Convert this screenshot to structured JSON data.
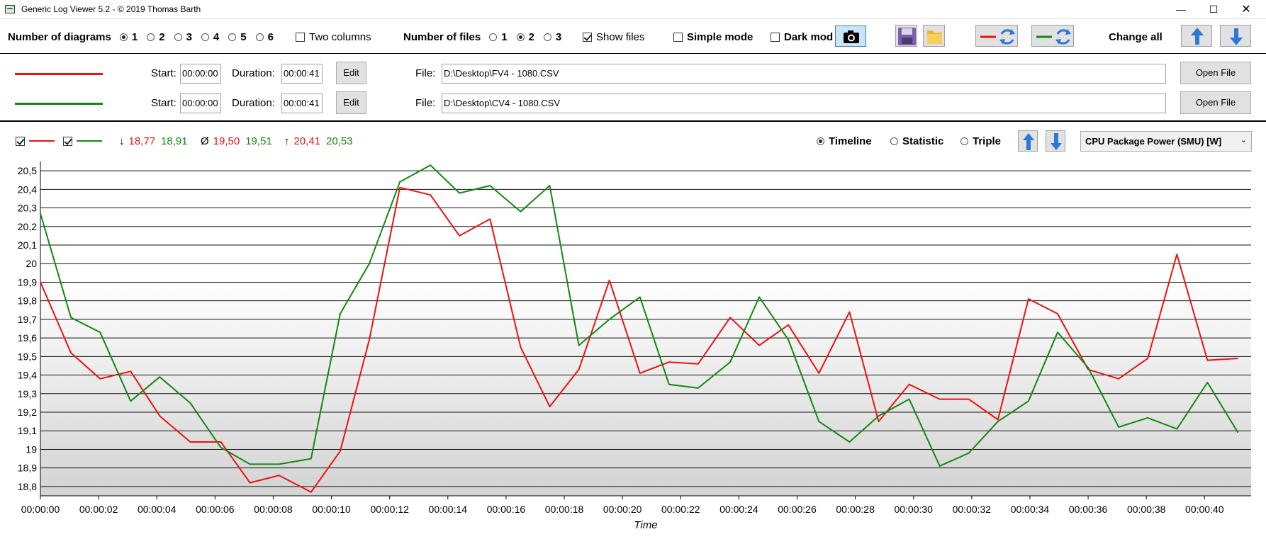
{
  "window": {
    "title": "Generic Log Viewer 5.2 - © 2019 Thomas Barth",
    "minimize": "—",
    "maximize": "☐",
    "close": "✕"
  },
  "toolbar": {
    "diagrams_label": "Number of diagrams",
    "diagram_options": [
      "1",
      "2",
      "3",
      "4",
      "5",
      "6"
    ],
    "diagram_selected": "1",
    "two_columns_label": "Two columns",
    "two_columns_checked": false,
    "files_label": "Number of files",
    "file_options": [
      "1",
      "2",
      "3"
    ],
    "file_selected": "2",
    "show_files_label": "Show files",
    "show_files_checked": true,
    "simple_mode_label": "Simple mode",
    "simple_mode_checked": false,
    "dark_mode_label": "Dark mod",
    "dark_mode_checked": false,
    "change_all_label": "Change all",
    "icons": {
      "camera": "camera-icon",
      "save": "floppy-disk-icon",
      "folder": "folder-icon",
      "swap_red": "red-line-swap-icon",
      "swap_green": "green-line-swap-icon",
      "up": "arrow-up-icon",
      "down": "arrow-down-icon"
    }
  },
  "files": [
    {
      "color": "#ee1111",
      "start_label": "Start:",
      "start": "00:00:00",
      "duration_label": "Duration:",
      "duration": "00:00:41",
      "edit_label": "Edit",
      "file_label": "File:",
      "path": "D:\\Desktop\\FV4 - 1080.CSV",
      "open_label": "Open File"
    },
    {
      "color": "#118811",
      "start_label": "Start:",
      "start": "00:00:00",
      "duration_label": "Duration:",
      "duration": "00:00:41",
      "edit_label": "Edit",
      "file_label": "File:",
      "path": "D:\\Desktop\\CV4 - 1080.CSV",
      "open_label": "Open File"
    }
  ],
  "stats": {
    "min_symbol": "↓",
    "min_red": "18,77",
    "min_green": "18,91",
    "avg_symbol": "Ø",
    "avg_red": "19,50",
    "avg_green": "19,51",
    "max_symbol": "↑",
    "max_red": "20,41",
    "max_green": "20,53",
    "series1_visible": true,
    "series2_visible": true
  },
  "view": {
    "options": [
      "Timeline",
      "Statistic",
      "Triple"
    ],
    "selected": "Timeline",
    "sensor": "CPU Package Power (SMU) [W]",
    "caret": "⌄"
  },
  "chart_data": {
    "type": "line",
    "xlabel": "Time",
    "ylabel": "",
    "ylim": [
      18.75,
      20.55
    ],
    "y_ticks": [
      "18,8",
      "18,9",
      "19",
      "19,1",
      "19,2",
      "19,3",
      "19,4",
      "19,5",
      "19,6",
      "19,7",
      "19,8",
      "19,9",
      "20",
      "20,1",
      "20,2",
      "20,3",
      "20,4",
      "20,5"
    ],
    "y_tick_values": [
      18.8,
      18.9,
      19.0,
      19.1,
      19.2,
      19.3,
      19.4,
      19.5,
      19.6,
      19.7,
      19.8,
      19.9,
      20.0,
      20.1,
      20.2,
      20.3,
      20.4,
      20.5
    ],
    "x_ticks": [
      "00:00:00",
      "00:00:02",
      "00:00:04",
      "00:00:06",
      "00:00:08",
      "00:00:10",
      "00:00:12",
      "00:00:14",
      "00:00:16",
      "00:00:18",
      "00:00:20",
      "00:00:22",
      "00:00:24",
      "00:00:26",
      "00:00:28",
      "00:00:30",
      "00:00:32",
      "00:00:34",
      "00:00:36",
      "00:00:38",
      "00:00:40"
    ],
    "x_tick_values": [
      0,
      2,
      4,
      6,
      8,
      10,
      12,
      14,
      16,
      18,
      20,
      22,
      24,
      26,
      28,
      30,
      32,
      34,
      36,
      38,
      40
    ],
    "xlim": [
      0,
      41.6
    ],
    "grid": true,
    "series": [
      {
        "color": "#ee1111",
        "x": [
          0,
          1.05,
          2.05,
          3.1,
          4.1,
          5.15,
          6.2,
          7.2,
          8.2,
          9.3,
          10.3,
          11.3,
          12.35,
          13.4,
          14.4,
          15.45,
          16.5,
          17.5,
          18.5,
          19.55,
          20.6,
          21.6,
          22.6,
          23.7,
          24.7,
          25.7,
          26.75,
          27.8,
          28.8,
          29.85,
          30.9,
          31.9,
          32.9,
          33.95,
          34.95,
          36.0,
          37.05,
          38.05,
          39.05,
          40.1,
          41.15
        ],
        "y": [
          19.9,
          19.52,
          19.38,
          19.42,
          19.18,
          19.04,
          19.04,
          18.82,
          18.86,
          18.77,
          18.99,
          19.59,
          20.41,
          20.37,
          20.15,
          20.24,
          19.55,
          19.23,
          19.43,
          19.91,
          19.41,
          19.47,
          19.46,
          19.71,
          19.56,
          19.67,
          19.41,
          19.74,
          19.15,
          19.35,
          19.27,
          19.27,
          19.16,
          19.81,
          19.73,
          19.43,
          19.38,
          19.49,
          20.05,
          19.48,
          19.49
        ]
      },
      {
        "color": "#118811",
        "x": [
          0,
          1.05,
          2.05,
          3.1,
          4.1,
          5.15,
          6.2,
          7.2,
          8.2,
          9.3,
          10.3,
          11.3,
          12.35,
          13.4,
          14.4,
          15.45,
          16.5,
          17.5,
          18.5,
          19.55,
          20.6,
          21.6,
          22.6,
          23.7,
          24.7,
          25.7,
          26.75,
          27.8,
          28.8,
          29.85,
          30.9,
          31.9,
          32.9,
          33.95,
          34.95,
          36.0,
          37.05,
          38.05,
          39.05,
          40.1,
          41.15
        ],
        "y": [
          20.27,
          19.71,
          19.63,
          19.26,
          19.39,
          19.25,
          19.01,
          18.92,
          18.92,
          18.95,
          19.73,
          20.0,
          20.44,
          20.53,
          20.38,
          20.42,
          20.28,
          20.42,
          19.56,
          19.7,
          19.82,
          19.35,
          19.33,
          19.47,
          19.82,
          19.59,
          19.15,
          19.04,
          19.18,
          19.27,
          18.91,
          18.98,
          19.15,
          19.26,
          19.63,
          19.44,
          19.12,
          19.17,
          19.11,
          19.36,
          19.09
        ]
      }
    ]
  }
}
